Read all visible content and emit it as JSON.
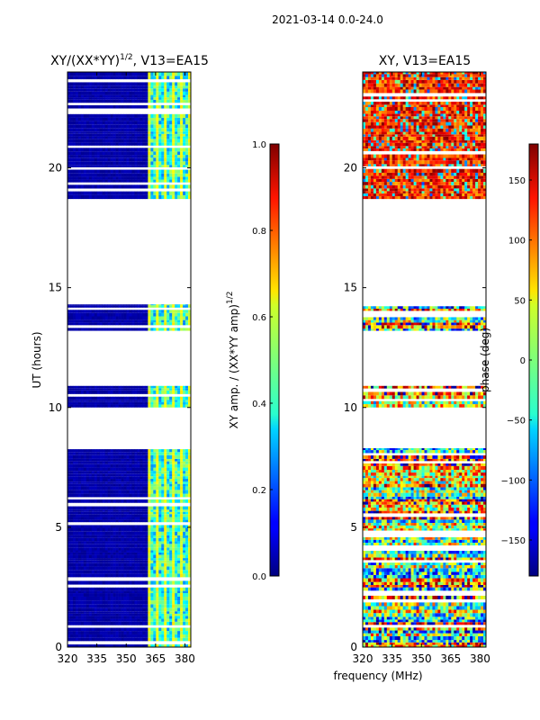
{
  "suptitle": "2021-03-14 0.0-24.0",
  "xlabel": "frequency (MHz)",
  "chart_data": [
    {
      "type": "heatmap",
      "title": "XY/(XX*YY)",
      "title_sup": "1/2",
      "title_suffix": ", V13=EA15",
      "xlabel": "frequency (MHz)",
      "ylabel": "UT (hours)",
      "xlim": [
        320,
        383
      ],
      "ylim": [
        0,
        24
      ],
      "xticks": [
        320,
        335,
        350,
        365,
        380
      ],
      "yticks": [
        0,
        5,
        10,
        15,
        20
      ],
      "colormap": "jet",
      "colorbar": {
        "label": "XY amp. / (XX*YY amp)",
        "label_sup": "1/2",
        "range": [
          0.0,
          1.0
        ],
        "ticks": [
          "0.0",
          "0.2",
          "0.4",
          "0.6",
          "0.8",
          "1.0"
        ]
      },
      "data_time_ranges_hours": [
        [
          0.0,
          8.3
        ],
        [
          10.0,
          10.9
        ],
        [
          13.2,
          14.3
        ],
        [
          18.7,
          24.0
        ]
      ],
      "notes": "amplitude near 0 below ~360 MHz; elevated (0.3-0.6) in channels ~360-380 MHz"
    },
    {
      "type": "heatmap",
      "title": "XY, V13=EA15",
      "xlabel": "frequency (MHz)",
      "ylabel": "",
      "xlim": [
        320,
        383
      ],
      "ylim": [
        0,
        24
      ],
      "xticks": [
        320,
        335,
        350,
        365,
        380
      ],
      "yticks": [
        0,
        5,
        10,
        15,
        20
      ],
      "colormap": "jet",
      "colorbar": {
        "label": "phase (deg)",
        "range": [
          -180,
          180
        ],
        "ticks": [
          "−150",
          "−100",
          "−50",
          "0",
          "50",
          "100",
          "150"
        ]
      },
      "data_time_ranges_hours": [
        [
          0.0,
          8.3
        ],
        [
          10.0,
          10.9
        ],
        [
          13.2,
          14.3
        ],
        [
          18.7,
          24.0
        ]
      ],
      "notes": "phase noisy across band; mostly red/orange (100-180 deg) in 18.7-24 h, mixed colours 0-8.3 h"
    }
  ]
}
